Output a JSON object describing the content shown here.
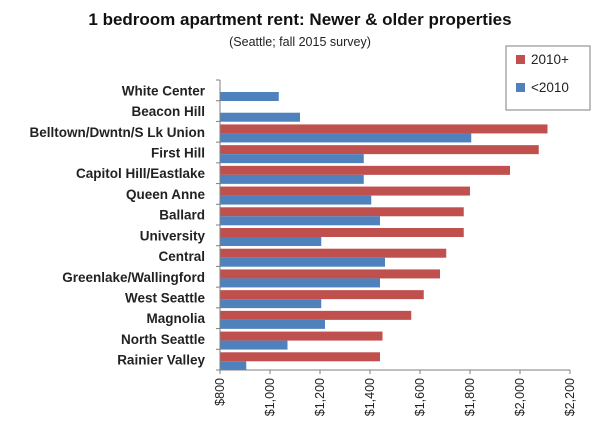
{
  "chart_data": {
    "type": "bar",
    "orientation": "horizontal",
    "title": "1 bedroom apartment rent: Newer & older properties",
    "subtitle": "(Seattle; fall 2015 survey)",
    "xlabel": "",
    "ylabel": "",
    "xlim": [
      800,
      2200
    ],
    "tick_step": 200,
    "tick_labels": [
      "$800",
      "$1,000",
      "$1,200",
      "$1,400",
      "$1,600",
      "$1,800",
      "$2,000",
      "$2,200"
    ],
    "categories": [
      "White Center",
      "Beacon Hill",
      "Belltown/Dwntn/S Lk Union",
      "First Hill",
      "Capitol Hill/Eastlake",
      "Queen Anne",
      "Ballard",
      "University",
      "Central",
      "Greenlake/Wallingford",
      "West Seattle",
      "Magnolia",
      "North Seattle",
      "Rainier Valley"
    ],
    "series": [
      {
        "name": "2010+",
        "color": "#c0504d",
        "values": [
          null,
          null,
          2110,
          2075,
          1960,
          1800,
          1775,
          1775,
          1705,
          1680,
          1615,
          1565,
          1450,
          1440
        ]
      },
      {
        "name": "<2010",
        "color": "#4f81bd",
        "values": [
          1035,
          1120,
          1805,
          1375,
          1375,
          1405,
          1440,
          1205,
          1460,
          1440,
          1205,
          1220,
          1070,
          905
        ]
      }
    ],
    "legend": {
      "position": "top-right"
    },
    "grid": false
  }
}
